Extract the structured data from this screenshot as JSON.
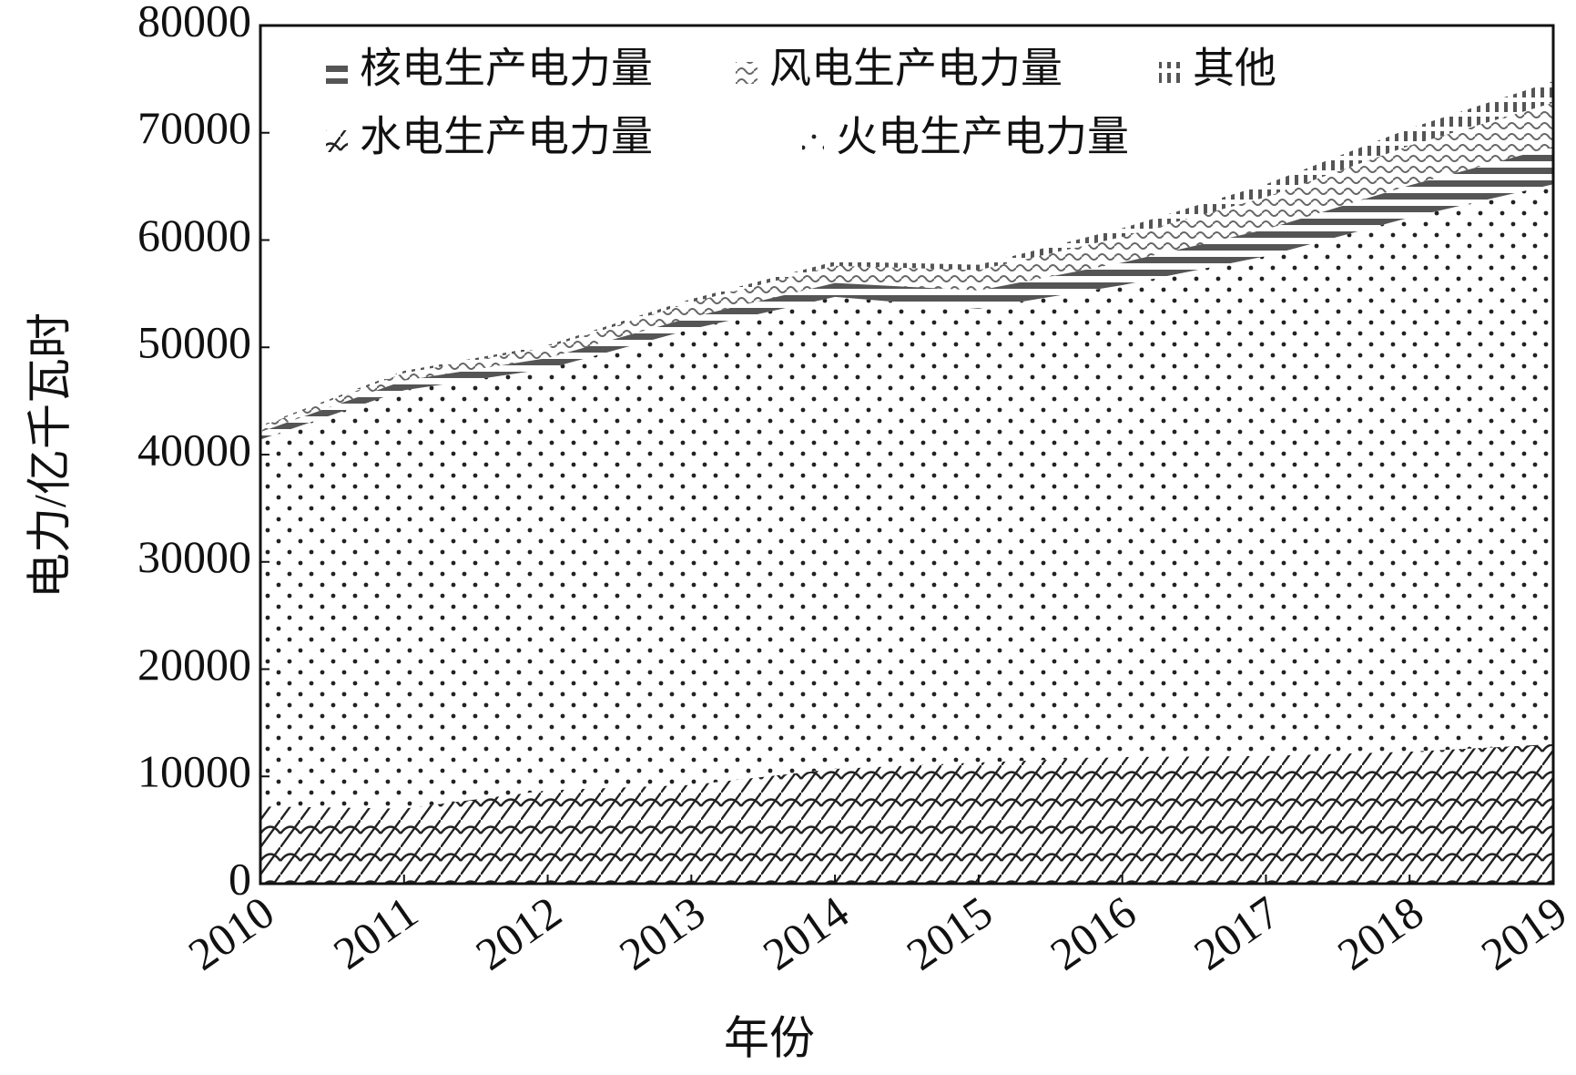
{
  "chart_data": {
    "type": "stacked_area",
    "x_label": "年份",
    "y_label": "电力/亿千瓦时",
    "x": [
      2010,
      2011,
      2012,
      2013,
      2014,
      2015,
      2016,
      2017,
      2018,
      2019
    ],
    "xlim": [
      2010,
      2019
    ],
    "xticks": [
      2010,
      2011,
      2012,
      2013,
      2014,
      2015,
      2016,
      2017,
      2018,
      2019
    ],
    "ylim": [
      0,
      80000
    ],
    "yticks": [
      0,
      10000,
      20000,
      30000,
      40000,
      50000,
      60000,
      70000,
      80000
    ],
    "series": [
      {
        "name": "水电生产电力量",
        "color": "#222222",
        "values": [
          7200,
          7000,
          8700,
          9200,
          10700,
          11300,
          11800,
          11900,
          12300,
          13000
        ]
      },
      {
        "name": "火电生产电力量",
        "color": "#222222",
        "values": [
          34200,
          39000,
          39300,
          42500,
          44000,
          42300,
          44000,
          46600,
          49800,
          52200
        ]
      },
      {
        "name": "核电生产电力量",
        "color": "#555555",
        "values": [
          700,
          900,
          1000,
          1100,
          1300,
          1700,
          2100,
          2500,
          3000,
          3500
        ]
      },
      {
        "name": "风电生产电力量",
        "color": "#666666",
        "values": [
          500,
          700,
          1000,
          1400,
          1600,
          1900,
          2400,
          3000,
          3700,
          4100
        ]
      },
      {
        "name": "其他",
        "color": "#555555",
        "values": [
          100,
          200,
          200,
          300,
          400,
          500,
          800,
          1200,
          1600,
          2000
        ]
      }
    ]
  }
}
